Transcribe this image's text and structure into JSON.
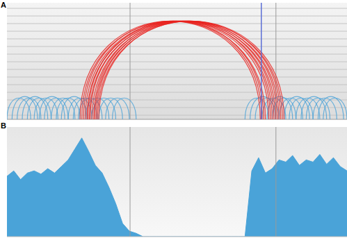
{
  "chart_data": [
    {
      "type": "arc",
      "title": "A",
      "xlim": [
        0,
        1000
      ],
      "tick_labels": false,
      "reference_lines": [
        362,
        791
      ],
      "highlight_line": 748,
      "series": [
        {
          "color": "#4aa3d8",
          "values": [
            [
              0,
              70
            ],
            [
              15,
              90
            ],
            [
              30,
              100
            ],
            [
              45,
              120
            ],
            [
              60,
              130
            ],
            [
              80,
              150
            ],
            [
              95,
              170
            ],
            [
              110,
              180
            ],
            [
              130,
              200
            ],
            [
              145,
              215
            ],
            [
              160,
              235
            ],
            [
              180,
              250
            ],
            [
              195,
              265
            ],
            [
              210,
              280
            ],
            [
              230,
              300
            ],
            [
              250,
              320
            ],
            [
              270,
              340
            ],
            [
              290,
              360
            ],
            [
              310,
              380
            ],
            [
              700,
              770
            ],
            [
              715,
              790
            ],
            [
              730,
              800
            ],
            [
              750,
              820
            ],
            [
              765,
              840
            ],
            [
              780,
              850
            ],
            [
              800,
              870
            ],
            [
              815,
              890
            ],
            [
              830,
              900
            ],
            [
              850,
              920
            ],
            [
              865,
              940
            ],
            [
              880,
              950
            ],
            [
              900,
              970
            ],
            [
              915,
              990
            ],
            [
              930,
              1000
            ]
          ]
        },
        {
          "color": "#e8231f",
          "values": [
            [
              215,
              745
            ],
            [
              220,
              760
            ],
            [
              225,
              750
            ],
            [
              230,
              770
            ],
            [
              235,
              780
            ],
            [
              238,
              755
            ],
            [
              242,
              790
            ],
            [
              245,
              775
            ],
            [
              250,
              800
            ],
            [
              255,
              785
            ],
            [
              258,
              810
            ],
            [
              262,
              795
            ],
            [
              266,
              815
            ],
            [
              270,
              805
            ]
          ]
        }
      ]
    },
    {
      "type": "area",
      "title": "B",
      "xlim": [
        0,
        1000
      ],
      "ylim": [
        0,
        100
      ],
      "tick_labels": false,
      "color": "#4aa3d8",
      "reference_lines": [
        362,
        791
      ],
      "x": [
        0,
        20,
        40,
        60,
        80,
        100,
        120,
        140,
        160,
        180,
        200,
        220,
        240,
        260,
        280,
        300,
        320,
        340,
        360,
        380,
        400,
        420,
        440,
        460,
        480,
        500,
        520,
        540,
        560,
        580,
        600,
        620,
        640,
        660,
        680,
        700,
        720,
        740,
        760,
        780,
        800,
        820,
        840,
        860,
        880,
        900,
        920,
        940,
        960,
        980,
        1000
      ],
      "values": [
        55,
        60,
        52,
        58,
        60,
        57,
        62,
        58,
        64,
        70,
        80,
        90,
        78,
        65,
        58,
        45,
        30,
        12,
        5,
        3,
        0,
        0,
        0,
        0,
        0,
        0,
        0,
        0,
        0,
        0,
        0,
        0,
        0,
        0,
        0,
        0,
        60,
        72,
        58,
        62,
        70,
        68,
        74,
        65,
        70,
        68,
        75,
        66,
        72,
        64,
        60
      ]
    }
  ]
}
